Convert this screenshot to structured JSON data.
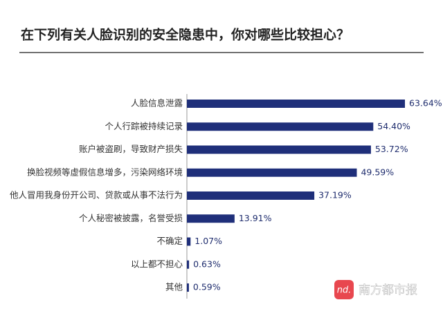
{
  "chart_data": {
    "type": "barh",
    "title": "在下列有关人脸识别的安全隐患中，你对哪些比较担心？",
    "categories": [
      "人脸信息泄露",
      "个人行踪被持续记录",
      "账户被盗刷，导致财产损失",
      "换脸视频等虚假信息增多，污染网络环境",
      "他人冒用我身份开公司、贷款或从事不法行为",
      "个人秘密被披露，名誉受损",
      "不确定",
      "以上都不担心",
      "其他"
    ],
    "values": [
      63.64,
      54.4,
      53.72,
      49.59,
      37.19,
      13.91,
      1.07,
      0.63,
      0.59
    ],
    "value_labels": [
      "63.64%",
      "54.40%",
      "53.72%",
      "49.59%",
      "37.19%",
      "13.91%",
      "1.07%",
      "0.63%",
      "0.59%"
    ],
    "color": "#1f2f7a"
  },
  "watermark": {
    "logo": "nd.",
    "text": "南方都市报"
  }
}
